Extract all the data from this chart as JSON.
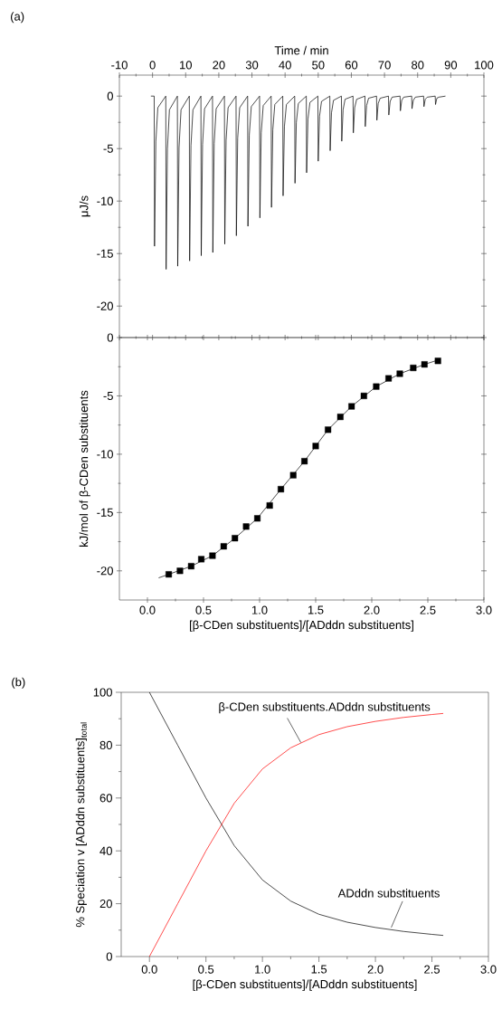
{
  "chart_data": [
    {
      "type": "line",
      "xlabel": "Time / min",
      "ylabel": "μJ/s",
      "annotations": [
        "(a)"
      ],
      "xlim": [
        -10,
        100
      ],
      "ylim": [
        -23,
        2
      ],
      "xticks": [
        -10,
        0,
        10,
        20,
        30,
        40,
        50,
        60,
        70,
        80,
        90,
        100
      ],
      "yticks": [
        -20,
        -15,
        -10,
        -5,
        0
      ],
      "series": [
        {
          "color": "#000000",
          "x": [
            -0.5,
            0.5,
            0.6,
            1.0,
            1.6,
            4.0,
            4.1,
            4.5,
            5.1,
            7.5,
            7.6,
            8.0,
            8.6,
            11.1,
            11.2,
            11.6,
            12.2,
            14.6,
            14.7,
            15.1,
            15.7,
            18.1,
            18.2,
            18.6,
            19.2,
            21.7,
            21.8,
            22.2,
            22.8,
            25.2,
            25.3,
            25.7,
            26.3,
            28.7,
            28.8,
            29.2,
            29.8,
            32.3,
            32.4,
            32.8,
            33.4,
            35.8,
            35.9,
            36.3,
            36.9,
            39.3,
            39.4,
            39.8,
            40.4,
            42.9,
            43.0,
            43.4,
            44.0,
            46.4,
            46.5,
            46.9,
            47.5,
            49.9,
            50.0,
            50.4,
            51.0,
            53.5,
            53.6,
            54.0,
            54.6,
            57.0,
            57.1,
            57.5,
            58.1,
            60.5,
            60.6,
            61.0,
            61.6,
            64.1,
            64.2,
            64.6,
            65.2,
            67.6,
            67.7,
            68.1,
            68.7,
            71.2,
            71.3,
            71.7,
            72.3,
            74.7,
            74.8,
            75.2,
            75.8,
            78.2,
            78.3,
            78.7,
            79.3,
            81.8,
            81.9,
            82.3,
            82.9,
            85.3,
            85.4,
            85.8,
            86.4,
            88.4
          ],
          "values": [
            0,
            0,
            -14.3,
            -4.3,
            -1.1,
            0,
            -16.5,
            -5.0,
            -1.3,
            0,
            -16.2,
            -4.9,
            -1.3,
            0,
            -15.7,
            -4.7,
            -1.3,
            0,
            -15.2,
            -4.6,
            -1.2,
            0,
            -14.9,
            -4.5,
            -1.2,
            0,
            -14.1,
            -4.2,
            -1.1,
            0,
            -13.3,
            -4.0,
            -1.1,
            0,
            -12.4,
            -3.7,
            -1.0,
            0,
            -11.6,
            -3.5,
            -0.9,
            0,
            -10.6,
            -3.2,
            -0.8,
            0,
            -9.5,
            -2.9,
            -0.8,
            0,
            -8.3,
            -2.5,
            -0.7,
            0,
            -7.3,
            -2.2,
            -0.6,
            0,
            -6.2,
            -1.9,
            -0.5,
            0,
            -5.2,
            -1.6,
            -0.4,
            0,
            -4.3,
            -1.3,
            -0.3,
            0,
            -3.5,
            -1.1,
            -0.3,
            0,
            -2.9,
            -0.9,
            -0.2,
            0,
            -2.3,
            -0.7,
            -0.2,
            0,
            -1.8,
            -0.5,
            -0.1,
            0,
            -1.4,
            -0.4,
            -0.1,
            0,
            -1.2,
            -0.4,
            -0.1,
            0,
            -1.0,
            -0.3,
            -0.1,
            0,
            -0.8,
            -0.2,
            -0.1,
            0
          ]
        }
      ]
    },
    {
      "type": "scatter",
      "xlabel": "[β-CDen substituents]/[ADddn substituents]",
      "ylabel": "kJ/mol of β-CDen substituents",
      "xlim": [
        -0.25,
        3.0
      ],
      "ylim": [
        -22.5,
        0
      ],
      "xticks": [
        {
          "value": 0,
          "label": "0.0"
        },
        0.5,
        {
          "value": 1,
          "label": "1.0"
        },
        1.5,
        {
          "value": 2,
          "label": "2.0"
        },
        2.5,
        {
          "value": 3,
          "label": "3.0"
        }
      ],
      "yticks": [
        -20,
        -15,
        -10,
        -5,
        0
      ],
      "series": [
        {
          "color": "#000000",
          "marker": "square",
          "x": [
            0.19,
            0.29,
            0.39,
            0.48,
            0.58,
            0.68,
            0.78,
            0.88,
            0.98,
            1.09,
            1.19,
            1.3,
            1.4,
            1.5,
            1.61,
            1.72,
            1.82,
            1.93,
            2.04,
            2.15,
            2.25,
            2.37,
            2.47,
            2.59
          ],
          "values": [
            -20.3,
            -20.0,
            -19.6,
            -19.0,
            -18.7,
            -17.9,
            -17.2,
            -16.2,
            -15.5,
            -14.4,
            -13.0,
            -11.8,
            -10.6,
            -9.3,
            -7.9,
            -6.8,
            -5.9,
            -5.0,
            -4.2,
            -3.5,
            -3.1,
            -2.6,
            -2.3,
            -2.0
          ]
        },
        {
          "type": "line",
          "color": "#000000",
          "x": [
            0.1,
            0.19,
            0.39,
            0.58,
            0.78,
            0.98,
            1.19,
            1.4,
            1.61,
            1.82,
            2.04,
            2.25,
            2.47,
            2.6
          ],
          "values": [
            -20.6,
            -20.3,
            -19.6,
            -18.7,
            -17.2,
            -15.5,
            -13.0,
            -10.6,
            -7.9,
            -5.9,
            -4.2,
            -3.1,
            -2.3,
            -1.9
          ]
        }
      ]
    },
    {
      "type": "line",
      "xlabel": "[β-CDen substituents]/[ADddn substituents]",
      "ylabel": "% Speciation v [ADddn substituents]$_{total}$",
      "annotations": [
        "(b)",
        {
          "text": "β-CDen substituents.ADddn substituents",
          "x": 1.34,
          "y": 81
        },
        {
          "text": "ADddn substituents",
          "x": 2.14,
          "y": 11
        }
      ],
      "xlim": [
        -0.25,
        3.0
      ],
      "ylim": [
        0,
        100
      ],
      "xticks": [
        {
          "value": 0,
          "label": "0.0"
        },
        0.5,
        {
          "value": 1,
          "label": "1.0"
        },
        1.5,
        {
          "value": 2,
          "label": "2.0"
        },
        2.5,
        {
          "value": 3,
          "label": "3.0"
        }
      ],
      "yticks": [
        0,
        20,
        40,
        60,
        80,
        100
      ],
      "series": [
        {
          "color": "#000000",
          "x": [
            0,
            0.25,
            0.5,
            0.75,
            1.0,
            1.25,
            1.5,
            1.75,
            2.0,
            2.25,
            2.5,
            2.6
          ],
          "values": [
            100,
            80,
            60,
            42,
            29,
            21,
            16,
            13,
            11,
            9.5,
            8.4,
            8
          ]
        },
        {
          "color": "#ff0000",
          "x": [
            0,
            0.25,
            0.5,
            0.75,
            1.0,
            1.25,
            1.5,
            1.75,
            2.0,
            2.25,
            2.5,
            2.6
          ],
          "values": [
            0,
            20,
            40,
            58,
            71,
            79,
            84,
            87,
            89,
            90.5,
            91.6,
            92
          ]
        }
      ]
    }
  ]
}
